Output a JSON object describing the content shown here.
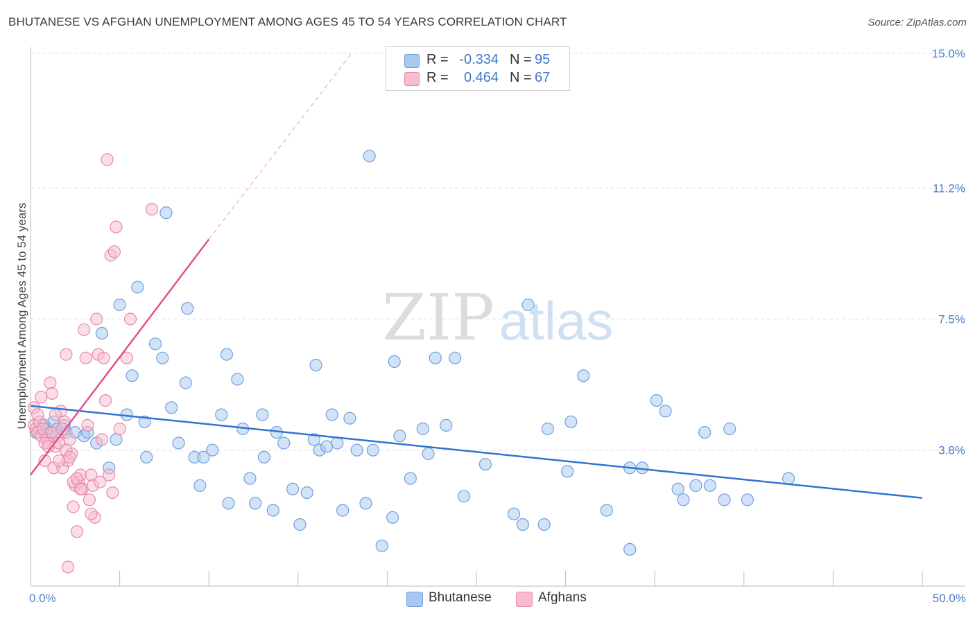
{
  "title": "BHUTANESE VS AFGHAN UNEMPLOYMENT AMONG AGES 45 TO 54 YEARS CORRELATION CHART",
  "source": "Source: ZipAtlas.com",
  "watermark": {
    "zip": "ZIP",
    "atlas": "atlas"
  },
  "legend_top": {
    "rows": [
      {
        "r_label": "R =",
        "r_value": "-0.334",
        "n_label": "N =",
        "n_value": "95",
        "color": "#a8c8f0",
        "border": "#6fa0dc"
      },
      {
        "r_label": "R =",
        "r_value": "0.464",
        "n_label": "N =",
        "n_value": "67",
        "color": "#f8bcd0",
        "border": "#e888a8"
      }
    ]
  },
  "legend_bottom": [
    {
      "label": "Bhutanese",
      "color": "#a8c8f0",
      "border": "#6fa0dc"
    },
    {
      "label": "Afghans",
      "color": "#f8bcd0",
      "border": "#e888a8"
    }
  ],
  "chart_data": {
    "type": "scatter",
    "title": "BHUTANESE VS AFGHAN UNEMPLOYMENT AMONG AGES 45 TO 54 YEARS CORRELATION CHART",
    "xlabel": "",
    "ylabel": "Unemployment Among Ages 45 to 54 years",
    "xlim": [
      0,
      50
    ],
    "ylim": [
      0,
      15
    ],
    "x_tick_labels": [
      {
        "value": 0,
        "label": "0.0%"
      },
      {
        "value": 50,
        "label": "50.0%"
      }
    ],
    "y_tick_labels": [
      {
        "value": 3.8,
        "label": "3.8%"
      },
      {
        "value": 7.5,
        "label": "7.5%"
      },
      {
        "value": 11.2,
        "label": "11.2%"
      },
      {
        "value": 15.0,
        "label": "15.0%"
      }
    ],
    "grid": true,
    "legend_position": "top-center",
    "series": [
      {
        "name": "Bhutanese",
        "color": "#6fa0dc",
        "fill": "#a8c8f0",
        "trend": {
          "x": [
            0,
            50
          ],
          "y": [
            5.05,
            2.45
          ],
          "color": "#2f74d0"
        },
        "points": [
          [
            0.3,
            4.3
          ],
          [
            0.5,
            4.4
          ],
          [
            0.8,
            4.5
          ],
          [
            0.9,
            4.4
          ],
          [
            1.1,
            4.3
          ],
          [
            1.3,
            4.6
          ],
          [
            1.5,
            4.4
          ],
          [
            1.9,
            4.5
          ],
          [
            2.0,
            4.3
          ],
          [
            2.5,
            4.3
          ],
          [
            3.0,
            4.2
          ],
          [
            3.2,
            4.3
          ],
          [
            3.7,
            4.0
          ],
          [
            4.4,
            3.3
          ],
          [
            4.8,
            4.1
          ],
          [
            5.0,
            7.9
          ],
          [
            4.0,
            7.1
          ],
          [
            5.4,
            4.8
          ],
          [
            5.7,
            5.9
          ],
          [
            6.0,
            8.4
          ],
          [
            6.4,
            4.6
          ],
          [
            6.5,
            3.6
          ],
          [
            7.0,
            6.8
          ],
          [
            7.4,
            6.4
          ],
          [
            7.6,
            10.5
          ],
          [
            7.9,
            5.0
          ],
          [
            8.3,
            4.0
          ],
          [
            8.7,
            5.7
          ],
          [
            8.8,
            7.8
          ],
          [
            9.2,
            3.6
          ],
          [
            9.5,
            2.8
          ],
          [
            9.7,
            3.6
          ],
          [
            10.2,
            3.8
          ],
          [
            10.7,
            4.8
          ],
          [
            11.0,
            6.5
          ],
          [
            11.1,
            2.3
          ],
          [
            11.6,
            5.8
          ],
          [
            11.9,
            4.4
          ],
          [
            12.3,
            3.0
          ],
          [
            12.6,
            2.3
          ],
          [
            13.0,
            4.8
          ],
          [
            13.1,
            3.6
          ],
          [
            13.6,
            2.1
          ],
          [
            13.8,
            4.3
          ],
          [
            14.2,
            4.0
          ],
          [
            14.7,
            2.7
          ],
          [
            15.1,
            1.7
          ],
          [
            15.5,
            2.6
          ],
          [
            15.9,
            4.1
          ],
          [
            16.0,
            6.2
          ],
          [
            16.2,
            3.8
          ],
          [
            16.6,
            3.9
          ],
          [
            16.9,
            4.8
          ],
          [
            17.2,
            4.0
          ],
          [
            17.5,
            2.1
          ],
          [
            17.9,
            4.7
          ],
          [
            18.3,
            3.8
          ],
          [
            18.8,
            2.3
          ],
          [
            19.0,
            12.1
          ],
          [
            19.2,
            3.8
          ],
          [
            19.7,
            1.1
          ],
          [
            20.3,
            1.9
          ],
          [
            20.4,
            6.3
          ],
          [
            20.7,
            4.2
          ],
          [
            21.3,
            3.0
          ],
          [
            22.0,
            4.4
          ],
          [
            22.3,
            3.7
          ],
          [
            22.7,
            6.4
          ],
          [
            23.3,
            4.5
          ],
          [
            23.8,
            6.4
          ],
          [
            24.3,
            2.5
          ],
          [
            25.5,
            3.4
          ],
          [
            27.1,
            2.0
          ],
          [
            27.6,
            1.7
          ],
          [
            27.9,
            7.9
          ],
          [
            28.8,
            1.7
          ],
          [
            29.0,
            4.4
          ],
          [
            30.1,
            3.2
          ],
          [
            30.3,
            4.6
          ],
          [
            31.0,
            5.9
          ],
          [
            32.3,
            2.1
          ],
          [
            33.6,
            3.3
          ],
          [
            33.6,
            1.0
          ],
          [
            34.3,
            3.3
          ],
          [
            35.1,
            5.2
          ],
          [
            35.6,
            4.9
          ],
          [
            36.3,
            2.7
          ],
          [
            36.6,
            2.4
          ],
          [
            37.3,
            2.8
          ],
          [
            37.8,
            4.3
          ],
          [
            38.1,
            2.8
          ],
          [
            38.9,
            2.4
          ],
          [
            39.2,
            4.4
          ],
          [
            40.2,
            2.4
          ],
          [
            42.5,
            3.0
          ]
        ]
      },
      {
        "name": "Afghans",
        "color": "#e888a8",
        "fill": "#f8bcd0",
        "trend": {
          "x": [
            0,
            10
          ],
          "y": [
            3.1,
            9.75
          ],
          "color": "#e0508a",
          "dashed_to": {
            "x": 18.0,
            "y": 15.0
          }
        },
        "points": [
          [
            0.2,
            4.5
          ],
          [
            0.3,
            4.4
          ],
          [
            0.4,
            4.3
          ],
          [
            0.5,
            4.6
          ],
          [
            0.6,
            4.2
          ],
          [
            0.7,
            4.4
          ],
          [
            0.8,
            3.5
          ],
          [
            0.9,
            4.1
          ],
          [
            1.0,
            4.0
          ],
          [
            1.1,
            5.7
          ],
          [
            1.2,
            5.4
          ],
          [
            1.3,
            3.3
          ],
          [
            1.4,
            3.9
          ],
          [
            1.5,
            4.2
          ],
          [
            1.6,
            4.0
          ],
          [
            1.7,
            4.9
          ],
          [
            1.8,
            3.3
          ],
          [
            1.9,
            4.6
          ],
          [
            2.0,
            6.5
          ],
          [
            2.1,
            3.5
          ],
          [
            2.2,
            4.1
          ],
          [
            2.3,
            3.7
          ],
          [
            2.4,
            2.2
          ],
          [
            2.5,
            2.8
          ],
          [
            2.6,
            1.5
          ],
          [
            2.7,
            2.9
          ],
          [
            2.8,
            3.1
          ],
          [
            2.9,
            2.7
          ],
          [
            3.0,
            7.2
          ],
          [
            3.1,
            6.4
          ],
          [
            3.2,
            4.5
          ],
          [
            3.3,
            2.4
          ],
          [
            3.4,
            3.1
          ],
          [
            3.5,
            2.8
          ],
          [
            3.6,
            1.9
          ],
          [
            3.7,
            7.5
          ],
          [
            3.8,
            6.5
          ],
          [
            3.9,
            2.9
          ],
          [
            4.0,
            4.1
          ],
          [
            4.1,
            6.4
          ],
          [
            4.2,
            5.2
          ],
          [
            4.3,
            12.0
          ],
          [
            4.4,
            3.1
          ],
          [
            4.5,
            9.3
          ],
          [
            4.6,
            2.6
          ],
          [
            4.7,
            9.4
          ],
          [
            4.8,
            10.1
          ],
          [
            5.0,
            4.4
          ],
          [
            5.4,
            6.4
          ],
          [
            5.6,
            7.5
          ],
          [
            6.8,
            10.6
          ],
          [
            0.2,
            5.0
          ],
          [
            0.4,
            4.8
          ],
          [
            0.6,
            5.3
          ],
          [
            0.8,
            4.0
          ],
          [
            1.0,
            3.9
          ],
          [
            1.2,
            4.3
          ],
          [
            1.4,
            4.8
          ],
          [
            1.6,
            3.5
          ],
          [
            1.8,
            4.4
          ],
          [
            2.0,
            3.8
          ],
          [
            2.2,
            3.6
          ],
          [
            2.4,
            2.9
          ],
          [
            2.6,
            3.0
          ],
          [
            2.8,
            2.7
          ],
          [
            2.1,
            0.5
          ],
          [
            3.4,
            2.0
          ]
        ]
      }
    ]
  }
}
